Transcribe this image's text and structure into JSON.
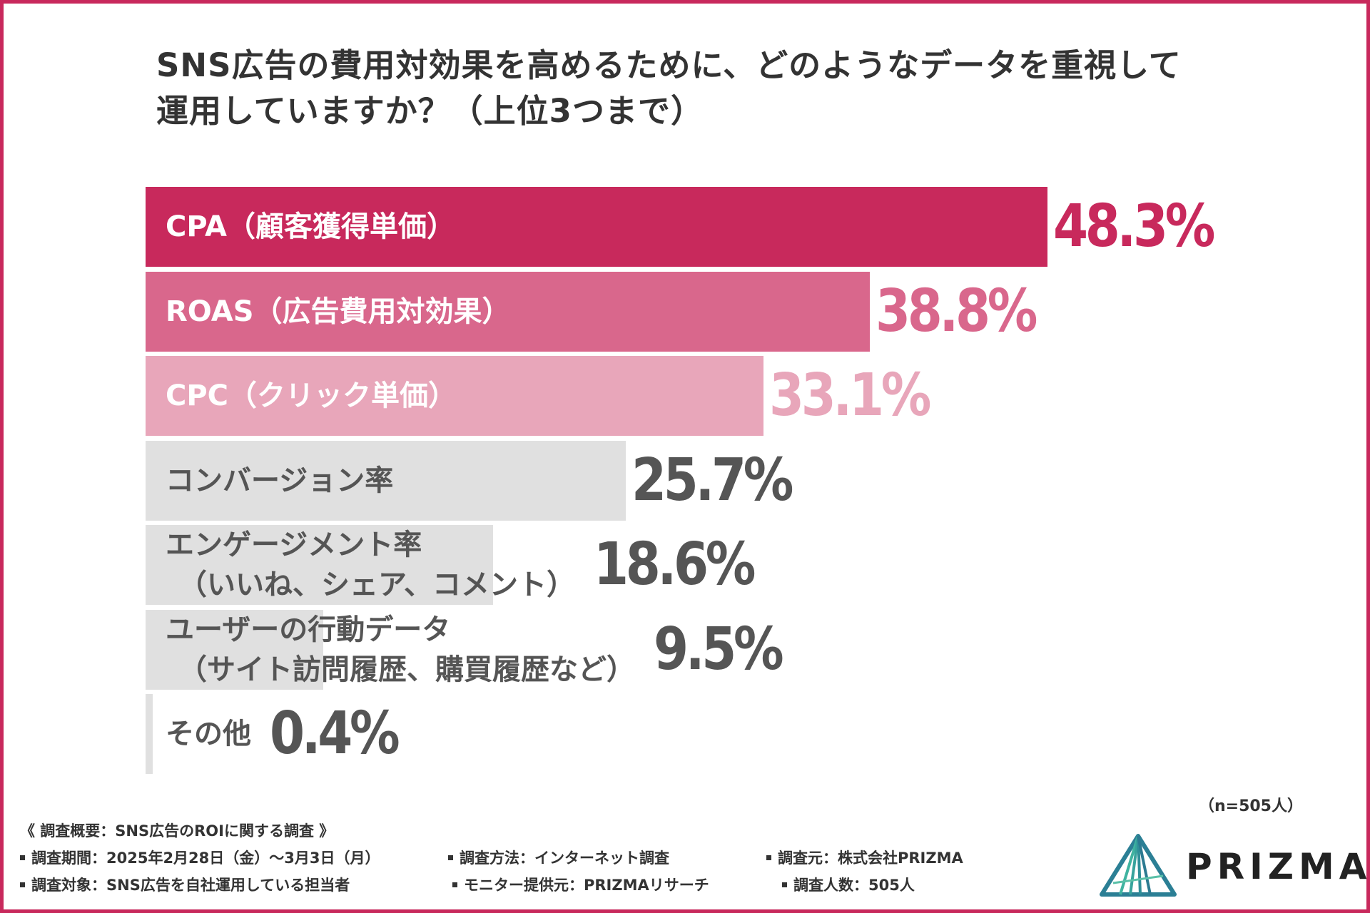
{
  "title": {
    "line1": "SNS広告の費用対効果を高めるために、どのようなデータを重視して",
    "line2": "運用していますか？（上位3つまで）"
  },
  "chart_data": {
    "type": "bar",
    "orientation": "horizontal",
    "title": "SNS広告の費用対効果を高めるために、どのようなデータを重視して運用していますか？（上位3つまで）",
    "categories": [
      [
        "CPA（顧客獲得単価）"
      ],
      [
        "ROAS（広告費用対効果）"
      ],
      [
        "CPC（クリック単価）"
      ],
      [
        "コンバージョン率"
      ],
      [
        "エンゲージメント率",
        "（いいね、シェア、コメント）"
      ],
      [
        "ユーザーの行動データ",
        "（サイト訪問履歴、購買履歴など）"
      ],
      [
        "その他"
      ]
    ],
    "values": [
      48.3,
      38.8,
      33.1,
      25.7,
      18.6,
      9.5,
      0.4
    ],
    "value_labels": [
      "48.3%",
      "38.8%",
      "33.1%",
      "25.7%",
      "18.6%",
      "9.5%",
      "0.4%"
    ],
    "unit": "%",
    "xlim": [
      0,
      48.3
    ],
    "bar_colors": [
      "#c8295c",
      "#d9678c",
      "#e8a6ba",
      "#e0e0e0",
      "#e0e0e0",
      "#e0e0e0",
      "#e0e0e0"
    ],
    "label_colors": [
      "#ffffff",
      "#ffffff",
      "#ffffff",
      "#555555",
      "#555555",
      "#555555",
      "#555555"
    ],
    "value_colors": [
      "#c8295c",
      "#d9678c",
      "#e8a6ba",
      "#555555",
      "#555555",
      "#555555",
      "#555555"
    ]
  },
  "sample_size": "（n=505人）",
  "footer": {
    "heading": "《 調査概要：SNS広告のROIに関する調査 》",
    "items": [
      "調査期間：2025年2月28日（金）〜3月3日（月）",
      "調査方法：インターネット調査",
      "調査元：株式会社PRIZMA",
      "調査対象：SNS広告を自社運用している担当者",
      "モニター提供元：PRIZMAリサーチ",
      "調査人数：505人"
    ]
  },
  "logo": {
    "text": "PRIZMA",
    "icon": "prism-triangle-icon",
    "colors": [
      "#1f7f8f",
      "#3fb3a0",
      "#2c5f8a"
    ]
  },
  "colors": {
    "accent": "#c8295c",
    "text": "#333333"
  }
}
